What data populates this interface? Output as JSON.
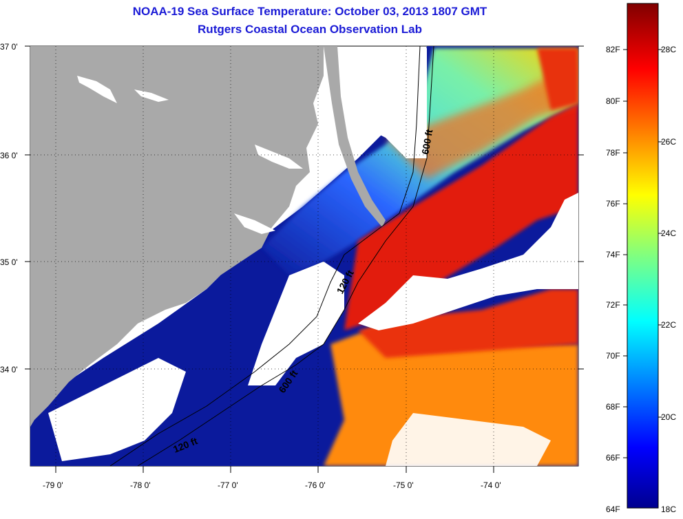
{
  "title": {
    "line1": "NOAA-19 Sea Surface Temperature:  October 03, 2013 1807 GMT",
    "line2": "Rutgers Coastal Ocean Observation Lab"
  },
  "axes": {
    "lat_labels": [
      "37 0'",
      "36 0'",
      "35 0'",
      "34 0'"
    ],
    "lon_labels": [
      "-79 0'",
      "-78 0'",
      "-77 0'",
      "-76 0'",
      "-75 0'",
      "-74 0'"
    ]
  },
  "contours": {
    "c1": "120 ft",
    "c2": "600 ft",
    "c3": "600 ft",
    "c4": "120 ft"
  },
  "colorbar": {
    "fahrenheit": [
      "82F",
      "80F",
      "78F",
      "76F",
      "74F",
      "72F",
      "70F",
      "68F",
      "66F",
      "64F"
    ],
    "celsius": [
      "28C",
      "26C",
      "24C",
      "22C",
      "20C",
      "18C"
    ]
  },
  "colors": {
    "land": "#a9a9a9",
    "cloud": "#ffffff",
    "title": "#1a1ad6"
  }
}
